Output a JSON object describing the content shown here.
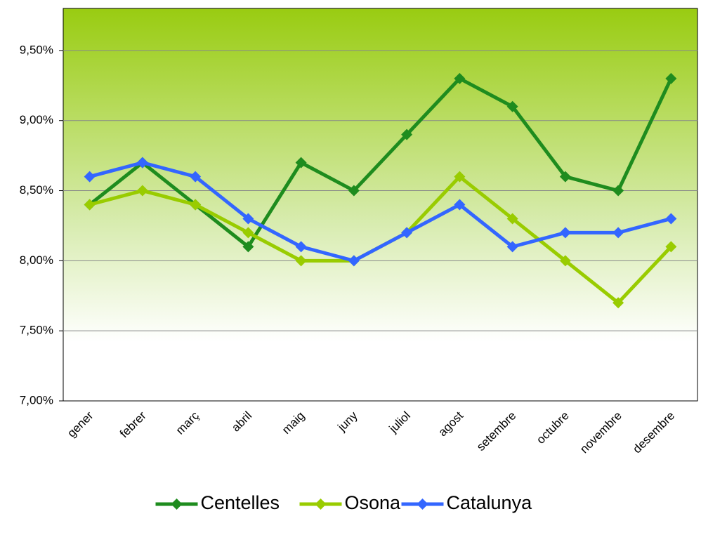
{
  "chart_data": {
    "type": "line",
    "categories": [
      "gener",
      "febrer",
      "març",
      "abril",
      "maig",
      "juny",
      "juliol",
      "agost",
      "setembre",
      "octubre",
      "novembre",
      "desembre"
    ],
    "series": [
      {
        "name": "Centelles",
        "color": "#1e8c1e",
        "values": [
          8.4,
          8.7,
          8.4,
          8.1,
          8.7,
          8.5,
          8.9,
          9.3,
          9.1,
          8.6,
          8.5,
          9.3
        ]
      },
      {
        "name": "Osona",
        "color": "#99cc00",
        "values": [
          8.4,
          8.5,
          8.4,
          8.2,
          8.0,
          8.0,
          8.2,
          8.6,
          8.3,
          8.0,
          7.7,
          8.1
        ]
      },
      {
        "name": "Catalunya",
        "color": "#3366ff",
        "values": [
          8.6,
          8.7,
          8.6,
          8.3,
          8.1,
          8.0,
          8.2,
          8.4,
          8.1,
          8.2,
          8.2,
          8.3
        ]
      }
    ],
    "ylim": [
      7,
      9.8
    ],
    "yticks": [
      {
        "value": 7,
        "label": "7,00%"
      },
      {
        "value": 7.5,
        "label": "7,50%"
      },
      {
        "value": 8,
        "label": "8,00%"
      },
      {
        "value": 8.5,
        "label": "8,50%"
      },
      {
        "value": 9,
        "label": "9,00%"
      },
      {
        "value": 9.5,
        "label": "9,50%"
      }
    ],
    "grid": true,
    "legend": "bottom"
  }
}
